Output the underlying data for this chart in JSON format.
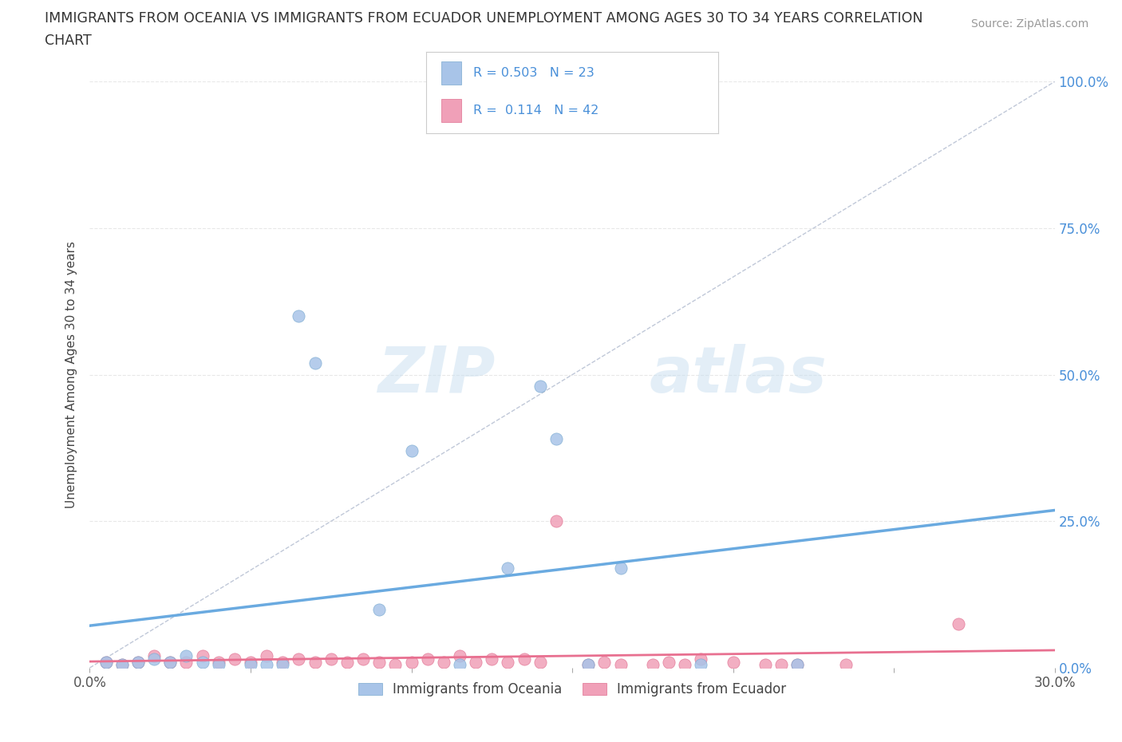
{
  "title_line1": "IMMIGRANTS FROM OCEANIA VS IMMIGRANTS FROM ECUADOR UNEMPLOYMENT AMONG AGES 30 TO 34 YEARS CORRELATION",
  "title_line2": "CHART",
  "source": "Source: ZipAtlas.com",
  "ylabel": "Unemployment Among Ages 30 to 34 years",
  "xmin": 0.0,
  "xmax": 0.3,
  "ymin": 0.0,
  "ymax": 1.0,
  "xticks": [
    0.0,
    0.05,
    0.1,
    0.15,
    0.2,
    0.25,
    0.3
  ],
  "ytick_vals": [
    0.0,
    0.25,
    0.5,
    0.75,
    1.0
  ],
  "ytick_right_labels": [
    "0.0%",
    "25.0%",
    "50.0%",
    "75.0%",
    "100.0%"
  ],
  "xtick_labels_bottom": [
    "0.0%",
    "",
    "",
    "",
    "",
    "",
    "30.0%"
  ],
  "oceania_color": "#a8c4e8",
  "ecuador_color": "#f0a0b8",
  "oceania_edge": "#7aaad0",
  "ecuador_edge": "#e07090",
  "oceania_R": 0.503,
  "oceania_N": 23,
  "ecuador_R": 0.114,
  "ecuador_N": 42,
  "oceania_scatter_x": [
    0.005,
    0.01,
    0.015,
    0.02,
    0.025,
    0.03,
    0.035,
    0.04,
    0.05,
    0.055,
    0.06,
    0.065,
    0.07,
    0.09,
    0.1,
    0.115,
    0.13,
    0.14,
    0.145,
    0.155,
    0.165,
    0.19,
    0.22
  ],
  "oceania_scatter_y": [
    0.01,
    0.005,
    0.01,
    0.015,
    0.01,
    0.02,
    0.01,
    0.005,
    0.005,
    0.005,
    0.005,
    0.6,
    0.52,
    0.1,
    0.37,
    0.005,
    0.17,
    0.48,
    0.39,
    0.005,
    0.17,
    0.005,
    0.005
  ],
  "ecuador_scatter_x": [
    0.005,
    0.01,
    0.015,
    0.02,
    0.025,
    0.03,
    0.035,
    0.04,
    0.045,
    0.05,
    0.055,
    0.06,
    0.065,
    0.07,
    0.075,
    0.08,
    0.085,
    0.09,
    0.095,
    0.1,
    0.105,
    0.11,
    0.115,
    0.12,
    0.125,
    0.13,
    0.135,
    0.14,
    0.145,
    0.155,
    0.16,
    0.165,
    0.175,
    0.18,
    0.185,
    0.19,
    0.2,
    0.21,
    0.215,
    0.22,
    0.235,
    0.27
  ],
  "ecuador_scatter_y": [
    0.01,
    0.005,
    0.01,
    0.02,
    0.01,
    0.01,
    0.02,
    0.01,
    0.015,
    0.01,
    0.02,
    0.01,
    0.015,
    0.01,
    0.015,
    0.01,
    0.015,
    0.01,
    0.005,
    0.01,
    0.015,
    0.01,
    0.02,
    0.01,
    0.015,
    0.01,
    0.015,
    0.01,
    0.25,
    0.005,
    0.01,
    0.005,
    0.005,
    0.01,
    0.005,
    0.015,
    0.01,
    0.005,
    0.005,
    0.005,
    0.005,
    0.075
  ],
  "watermark_zip": "ZIP",
  "watermark_atlas": "atlas",
  "legend_oceania": "Immigrants from Oceania",
  "legend_ecuador": "Immigrants from Ecuador",
  "background_color": "#ffffff",
  "grid_color": "#e8e8e8",
  "trend_blue": "#6aaae0",
  "trend_pink": "#e87090",
  "diag_color": "#c0c8d8"
}
